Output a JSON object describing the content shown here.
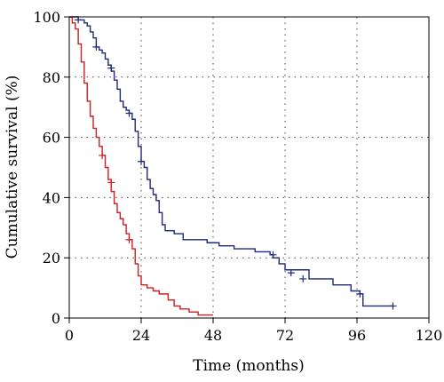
{
  "chart_data": {
    "type": "line",
    "step": true,
    "title": "",
    "xlabel": "Time (months)",
    "ylabel": "Cumulative survival (%)",
    "xlim": [
      0,
      120
    ],
    "ylim": [
      0,
      100
    ],
    "xticks": [
      0,
      24,
      48,
      72,
      96,
      120
    ],
    "yticks": [
      0,
      20,
      40,
      60,
      80,
      100
    ],
    "grid": true,
    "series": [
      {
        "color": "#1f2a7a",
        "points": [
          [
            0,
            100
          ],
          [
            2,
            100
          ],
          [
            3,
            99
          ],
          [
            5,
            98
          ],
          [
            6,
            97
          ],
          [
            7,
            95
          ],
          [
            8,
            93
          ],
          [
            9,
            90
          ],
          [
            10,
            89
          ],
          [
            11,
            88
          ],
          [
            12,
            86
          ],
          [
            13,
            84
          ],
          [
            14,
            82
          ],
          [
            15,
            79
          ],
          [
            16,
            76
          ],
          [
            17,
            72
          ],
          [
            18,
            70
          ],
          [
            19,
            69
          ],
          [
            20,
            68
          ],
          [
            21,
            66
          ],
          [
            22,
            62
          ],
          [
            23,
            57
          ],
          [
            24,
            52
          ],
          [
            25,
            50
          ],
          [
            26,
            46
          ],
          [
            27,
            43
          ],
          [
            28,
            41
          ],
          [
            29,
            39
          ],
          [
            30,
            35
          ],
          [
            31,
            31
          ],
          [
            32,
            29
          ],
          [
            35,
            28
          ],
          [
            38,
            26
          ],
          [
            46,
            25
          ],
          [
            50,
            24
          ],
          [
            55,
            23
          ],
          [
            62,
            22
          ],
          [
            67,
            21
          ],
          [
            68,
            20
          ],
          [
            70,
            18
          ],
          [
            72,
            16
          ],
          [
            80,
            13
          ],
          [
            88,
            11
          ],
          [
            94,
            9
          ],
          [
            97,
            8
          ],
          [
            98,
            4
          ],
          [
            108,
            4
          ]
        ],
        "censored": [
          [
            3,
            99
          ],
          [
            9,
            90
          ],
          [
            14,
            83
          ],
          [
            20,
            68
          ],
          [
            24,
            52
          ],
          [
            68,
            21
          ],
          [
            74,
            15
          ],
          [
            78,
            13
          ],
          [
            97,
            8
          ],
          [
            108,
            4
          ]
        ]
      },
      {
        "color": "#cc1f1f",
        "points": [
          [
            0,
            100
          ],
          [
            1,
            98
          ],
          [
            2,
            96
          ],
          [
            3,
            91
          ],
          [
            4,
            85
          ],
          [
            5,
            78
          ],
          [
            6,
            72
          ],
          [
            7,
            67
          ],
          [
            8,
            63
          ],
          [
            9,
            60
          ],
          [
            10,
            57
          ],
          [
            11,
            54
          ],
          [
            12,
            50
          ],
          [
            13,
            46
          ],
          [
            14,
            42
          ],
          [
            15,
            38
          ],
          [
            16,
            35
          ],
          [
            17,
            33
          ],
          [
            18,
            31
          ],
          [
            19,
            28
          ],
          [
            20,
            26
          ],
          [
            21,
            23
          ],
          [
            22,
            18
          ],
          [
            23,
            14
          ],
          [
            24,
            11
          ],
          [
            26,
            10
          ],
          [
            28,
            9
          ],
          [
            30,
            8
          ],
          [
            33,
            6
          ],
          [
            35,
            4
          ],
          [
            37,
            3
          ],
          [
            40,
            2
          ],
          [
            43,
            1
          ],
          [
            48,
            1
          ]
        ],
        "censored": [
          [
            11,
            54
          ],
          [
            14,
            45
          ],
          [
            20,
            26
          ]
        ]
      }
    ]
  }
}
